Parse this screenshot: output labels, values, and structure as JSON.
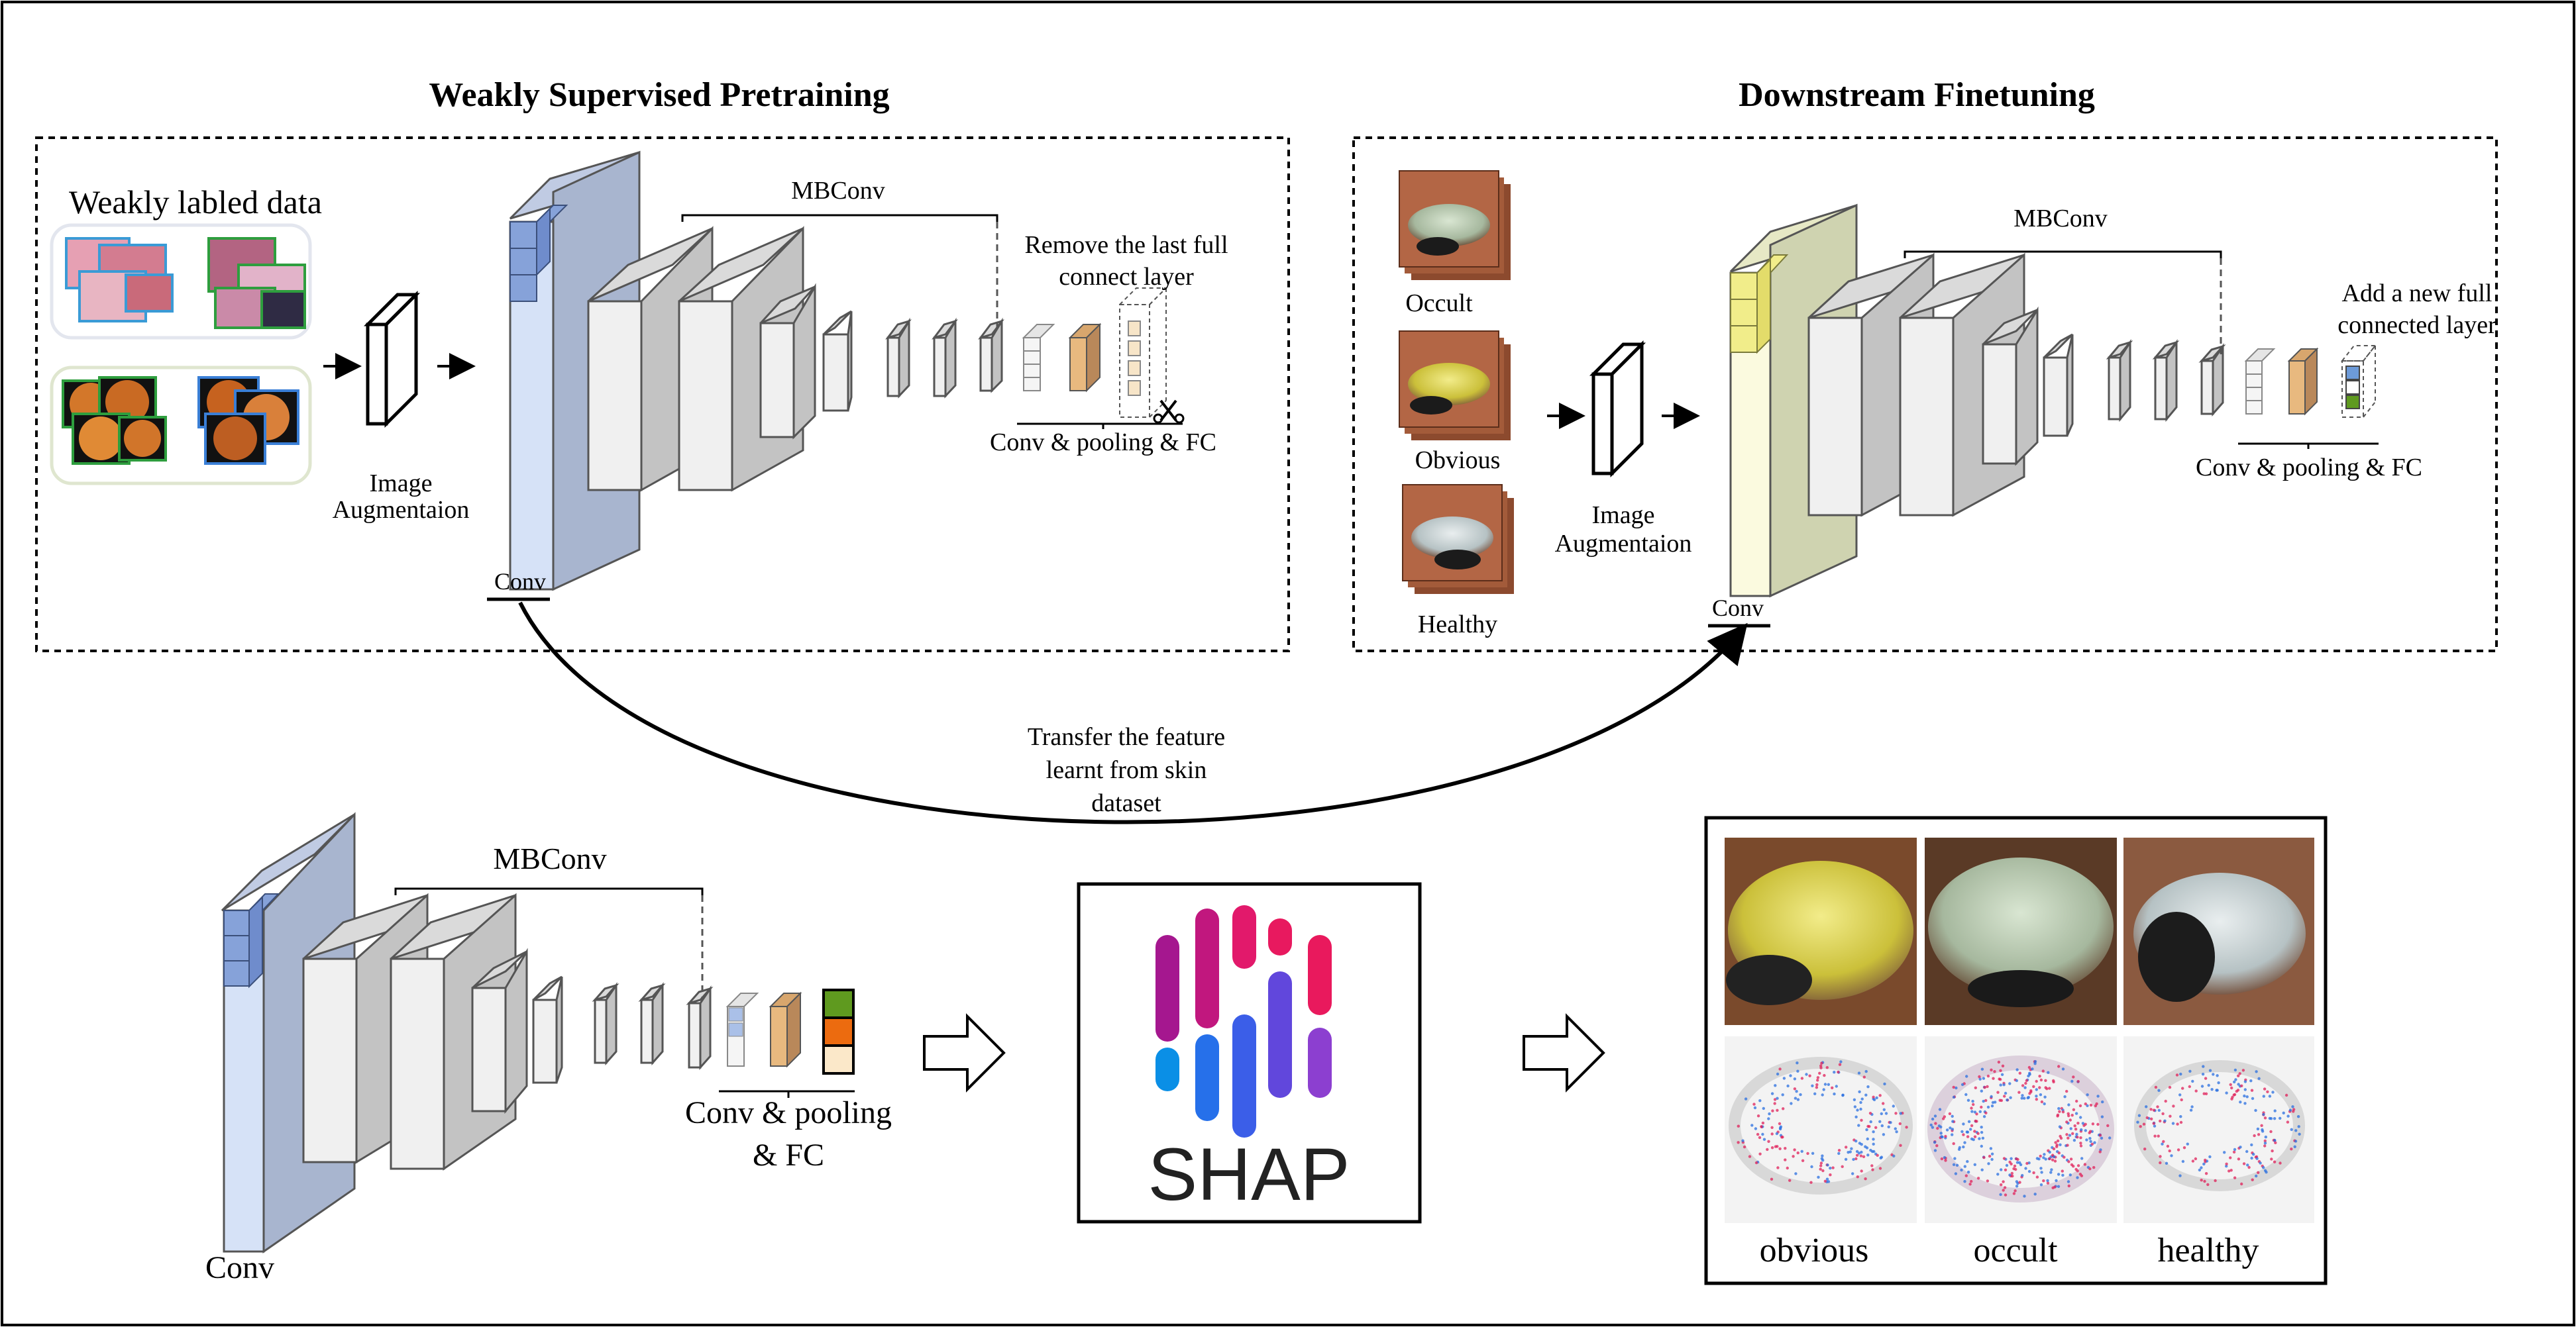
{
  "sections": {
    "pretraining_title": "Weakly Supervised Pretraining",
    "finetuning_title": "Downstream Finetuning"
  },
  "pretrain": {
    "data_label": "Weakly labled data",
    "augment_line1": "Image",
    "augment_line2": "Augmentaion",
    "conv_label": "Conv",
    "mbconv_label": "MBConv",
    "head_label": "Conv & pooling & FC",
    "remove_line1": "Remove the last full",
    "remove_line2": "connect layer"
  },
  "finetune": {
    "classes": [
      "Occult",
      "Obvious",
      "Healthy"
    ],
    "augment_line1": "Image",
    "augment_line2": "Augmentaion",
    "conv_label": "Conv",
    "mbconv_label": "MBConv",
    "head_label": "Conv & pooling & FC",
    "add_line1": "Add a new full",
    "add_line2": "connected layer"
  },
  "transfer": {
    "line1": "Transfer the feature",
    "line2": "learnt from skin",
    "line3": "dataset"
  },
  "bottom": {
    "conv_label": "Conv",
    "mbconv_label": "MBConv",
    "head_line1": "Conv & pooling",
    "head_line2": "& FC",
    "shap_text": "SHAP",
    "result_labels": [
      "obvious",
      "occult",
      "healthy"
    ]
  },
  "colors": {
    "conv_blue_front": "#d6e2f7",
    "conv_blue_side": "#a8b5cf",
    "conv_yellow_front": "#fbfadf",
    "conv_yellow_side": "#cfd3b0",
    "block_front": "#f0f0f0",
    "block_side": "#c3c3c3",
    "fc_orange": "#e8b97f",
    "fc_green": "#5f9a1f",
    "fc_red_orange": "#ec6b0f",
    "eye_yellow": "#d8cf40"
  }
}
